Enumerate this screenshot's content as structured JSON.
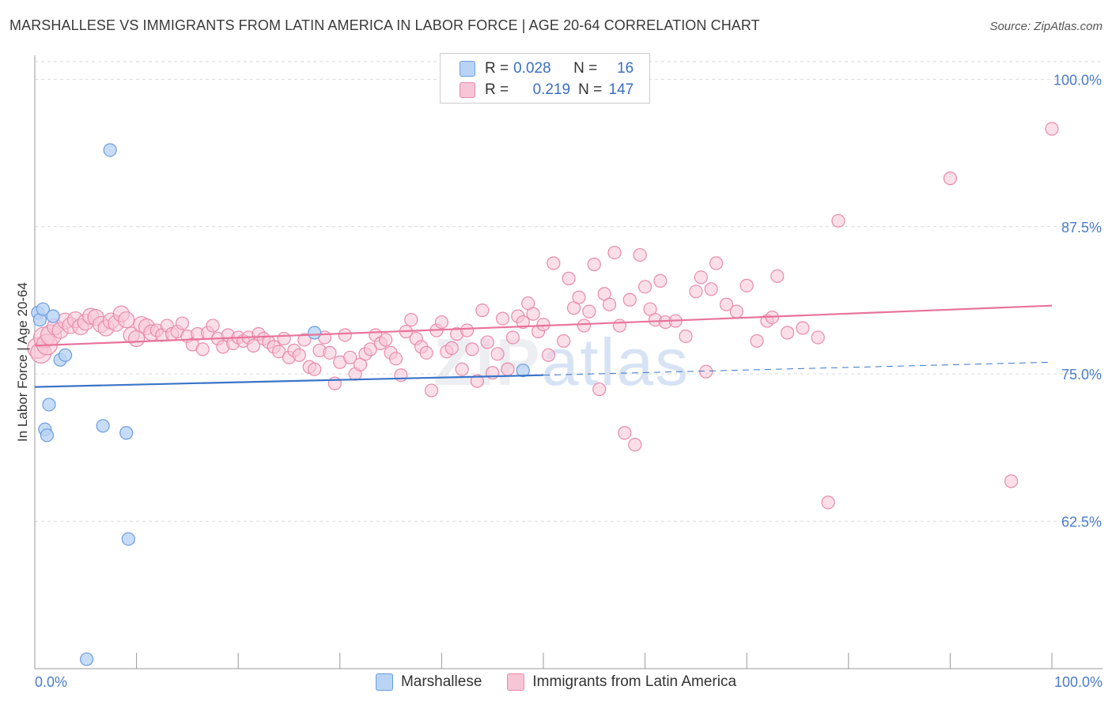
{
  "title": "MARSHALLESE VS IMMIGRANTS FROM LATIN AMERICA IN LABOR FORCE | AGE 20-64 CORRELATION CHART",
  "source": "Source: ZipAtlas.com",
  "watermark": {
    "zip": "ZIP",
    "atlas": "atlas"
  },
  "legend": {
    "rows": [
      {
        "r_label": "R =",
        "r_value": "0.028",
        "n_label": "N =",
        "n_value": "16"
      },
      {
        "r_label": "R =",
        "r_value": "0.219",
        "n_label": "N =",
        "n_value": "147"
      }
    ]
  },
  "bottom_legend": {
    "series1": "Marshallese",
    "series2": "Immigrants from Latin America"
  },
  "colors": {
    "blue_fill": "#b9d3f5",
    "blue_stroke": "#6b9de0",
    "blue_line": "#3a74c8",
    "pink_fill": "#f7c5d5",
    "pink_stroke": "#e88aab",
    "pink_line": "#e8739a",
    "grid": "#d9d9d9",
    "axis": "#999999",
    "tick_text": "#4a7cc9"
  },
  "chart_data": {
    "type": "scatter",
    "title": "MARSHALLESE VS IMMIGRANTS FROM LATIN AMERICA IN LABOR FORCE | AGE 20-64 CORRELATION CHART",
    "xlabel": "",
    "ylabel": "In Labor Force | Age 20-64",
    "xlim": [
      0,
      100
    ],
    "ylim": [
      50,
      101.5
    ],
    "x_tick_labels": [
      "0.0%",
      "100.0%"
    ],
    "y_ticks": [
      {
        "value": 100.0,
        "label": "100.0%"
      },
      {
        "value": 87.5,
        "label": "87.5%"
      },
      {
        "value": 75.0,
        "label": "75.0%"
      },
      {
        "value": 62.5,
        "label": "62.5%"
      }
    ],
    "series": [
      {
        "name": "Marshallese",
        "R": 0.028,
        "N": 16,
        "trend": {
          "x": [
            0,
            50
          ],
          "y": [
            73.9,
            74.9
          ]
        },
        "trend_dashed": {
          "x": [
            50,
            100
          ],
          "y": [
            74.9,
            76.0
          ]
        },
        "points": [
          [
            0.3,
            80.2
          ],
          [
            0.5,
            79.6
          ],
          [
            0.8,
            80.5
          ],
          [
            1.8,
            79.9
          ],
          [
            2.5,
            76.2
          ],
          [
            3.0,
            76.6
          ],
          [
            1.4,
            72.4
          ],
          [
            1.0,
            70.3
          ],
          [
            1.2,
            69.8
          ],
          [
            6.7,
            70.6
          ],
          [
            9.0,
            70.0
          ],
          [
            7.4,
            94.0
          ],
          [
            9.2,
            61.0
          ],
          [
            5.1,
            50.8
          ],
          [
            27.5,
            78.5
          ],
          [
            48.0,
            75.3
          ]
        ]
      },
      {
        "name": "Immigrants from Latin America",
        "R": 0.219,
        "N": 147,
        "trend": {
          "x": [
            0,
            100
          ],
          "y": [
            77.4,
            80.8
          ]
        },
        "points": [
          [
            0.3,
            77.2
          ],
          [
            0.6,
            76.8
          ],
          [
            0.9,
            78.1
          ],
          [
            1.2,
            77.5
          ],
          [
            1.6,
            78.3
          ],
          [
            2.0,
            79.0
          ],
          [
            2.5,
            78.7
          ],
          [
            3.0,
            79.5
          ],
          [
            3.5,
            79.1
          ],
          [
            4.0,
            79.6
          ],
          [
            4.5,
            79.0
          ],
          [
            5.0,
            79.4
          ],
          [
            5.5,
            79.9
          ],
          [
            6.0,
            79.8
          ],
          [
            6.5,
            79.2
          ],
          [
            7.0,
            78.9
          ],
          [
            7.5,
            79.5
          ],
          [
            8.0,
            79.3
          ],
          [
            8.5,
            80.1
          ],
          [
            9.0,
            79.6
          ],
          [
            9.5,
            78.3
          ],
          [
            10.0,
            78.0
          ],
          [
            10.5,
            79.2
          ],
          [
            11.0,
            79.0
          ],
          [
            11.5,
            78.5
          ],
          [
            12.0,
            78.7
          ],
          [
            12.5,
            78.3
          ],
          [
            13.0,
            79.1
          ],
          [
            13.5,
            78.4
          ],
          [
            14.0,
            78.6
          ],
          [
            14.5,
            79.3
          ],
          [
            15.0,
            78.2
          ],
          [
            15.5,
            77.5
          ],
          [
            16.0,
            78.4
          ],
          [
            16.5,
            77.1
          ],
          [
            17.0,
            78.5
          ],
          [
            17.5,
            79.1
          ],
          [
            18.0,
            78.0
          ],
          [
            18.5,
            77.3
          ],
          [
            19.0,
            78.3
          ],
          [
            19.5,
            77.6
          ],
          [
            20.0,
            78.1
          ],
          [
            20.5,
            77.8
          ],
          [
            21.0,
            78.1
          ],
          [
            21.5,
            77.4
          ],
          [
            22.0,
            78.4
          ],
          [
            22.5,
            78.0
          ],
          [
            23.0,
            77.7
          ],
          [
            23.5,
            77.3
          ],
          [
            24.0,
            76.9
          ],
          [
            24.5,
            78.0
          ],
          [
            25.0,
            76.4
          ],
          [
            25.5,
            77.0
          ],
          [
            26.0,
            76.6
          ],
          [
            26.5,
            77.9
          ],
          [
            27.0,
            75.6
          ],
          [
            27.5,
            75.4
          ],
          [
            28.0,
            77.0
          ],
          [
            28.5,
            78.1
          ],
          [
            29.0,
            76.8
          ],
          [
            29.5,
            74.2
          ],
          [
            30.0,
            76.0
          ],
          [
            30.5,
            78.3
          ],
          [
            31.0,
            76.4
          ],
          [
            31.5,
            75.0
          ],
          [
            32.0,
            75.8
          ],
          [
            32.5,
            76.7
          ],
          [
            33.0,
            77.1
          ],
          [
            33.5,
            78.3
          ],
          [
            34.0,
            77.6
          ],
          [
            34.5,
            77.9
          ],
          [
            35.0,
            76.8
          ],
          [
            35.5,
            76.3
          ],
          [
            36.0,
            74.9
          ],
          [
            36.5,
            78.6
          ],
          [
            37.0,
            79.6
          ],
          [
            37.5,
            78.0
          ],
          [
            38.0,
            77.3
          ],
          [
            38.5,
            76.8
          ],
          [
            39.0,
            73.6
          ],
          [
            39.5,
            78.7
          ],
          [
            40.0,
            79.4
          ],
          [
            40.5,
            76.9
          ],
          [
            41.0,
            77.2
          ],
          [
            41.5,
            78.4
          ],
          [
            42.0,
            75.4
          ],
          [
            42.5,
            78.7
          ],
          [
            43.0,
            77.1
          ],
          [
            43.5,
            74.4
          ],
          [
            44.0,
            80.4
          ],
          [
            44.5,
            77.7
          ],
          [
            45.0,
            75.1
          ],
          [
            45.5,
            76.7
          ],
          [
            46.0,
            79.7
          ],
          [
            46.5,
            75.4
          ],
          [
            47.0,
            78.1
          ],
          [
            47.5,
            79.9
          ],
          [
            48.0,
            79.4
          ],
          [
            48.5,
            81.0
          ],
          [
            49.0,
            80.1
          ],
          [
            49.5,
            78.6
          ],
          [
            50.0,
            79.2
          ],
          [
            50.5,
            76.6
          ],
          [
            51.0,
            84.4
          ],
          [
            52.0,
            77.8
          ],
          [
            52.5,
            83.1
          ],
          [
            53.0,
            80.6
          ],
          [
            53.5,
            81.5
          ],
          [
            54.0,
            79.1
          ],
          [
            54.5,
            80.3
          ],
          [
            55.0,
            84.3
          ],
          [
            55.5,
            73.7
          ],
          [
            56.0,
            81.8
          ],
          [
            56.5,
            80.9
          ],
          [
            57.0,
            85.3
          ],
          [
            57.5,
            79.1
          ],
          [
            58.0,
            70.0
          ],
          [
            58.5,
            81.3
          ],
          [
            59.0,
            69.0
          ],
          [
            59.5,
            85.1
          ],
          [
            60.0,
            82.4
          ],
          [
            60.5,
            80.5
          ],
          [
            61.0,
            79.6
          ],
          [
            61.5,
            82.9
          ],
          [
            62.0,
            79.4
          ],
          [
            63.0,
            79.5
          ],
          [
            64.0,
            78.2
          ],
          [
            65.0,
            82.0
          ],
          [
            65.5,
            83.2
          ],
          [
            66.0,
            75.2
          ],
          [
            66.5,
            82.2
          ],
          [
            67.0,
            84.4
          ],
          [
            68.0,
            80.9
          ],
          [
            69.0,
            80.3
          ],
          [
            70.0,
            82.5
          ],
          [
            71.0,
            77.8
          ],
          [
            72.0,
            79.5
          ],
          [
            72.5,
            79.8
          ],
          [
            73.0,
            83.3
          ],
          [
            74.0,
            78.5
          ],
          [
            75.5,
            78.9
          ],
          [
            77.0,
            78.1
          ],
          [
            78.0,
            64.1
          ],
          [
            79.0,
            88.0
          ],
          [
            90.0,
            91.6
          ],
          [
            96.0,
            65.9
          ],
          [
            100.0,
            95.8
          ]
        ]
      }
    ]
  }
}
